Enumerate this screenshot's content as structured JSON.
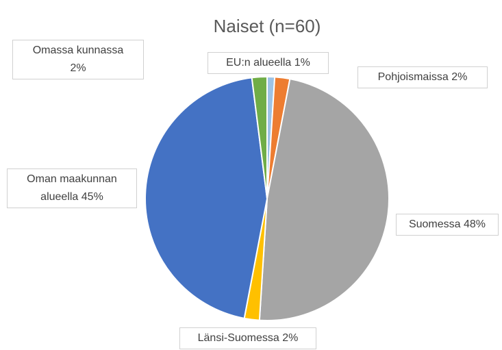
{
  "chart_data": {
    "type": "pie",
    "title": "Naiset (n=60)",
    "categories": [
      "EU:n alueella",
      "Pohjoismaissa",
      "Suomessa",
      "Länsi-Suomessa",
      "Oman maakunnan alueella",
      "Omassa kunnassa"
    ],
    "values": [
      1,
      2,
      48,
      2,
      45,
      2
    ],
    "value_labels": [
      "1%",
      "2%",
      "48%",
      "2%",
      "45%",
      "2%"
    ],
    "colors": [
      "#9dc3e6",
      "#ed7d31",
      "#a5a5a5",
      "#ffc000",
      "#4472c4",
      "#70ad47"
    ]
  }
}
